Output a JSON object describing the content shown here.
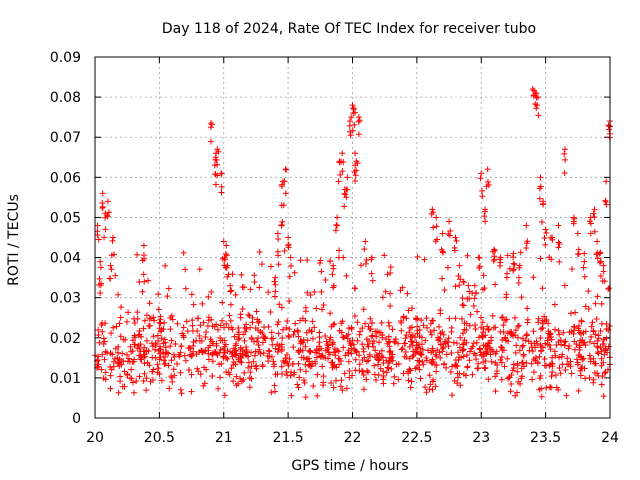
{
  "chart_data": {
    "type": "scatter",
    "title": "Day 118 of 2024, Rate Of TEC Index for receiver tubo",
    "xlabel": "GPS time / hours",
    "ylabel": "ROTI / TECUs",
    "xlim": [
      20,
      24
    ],
    "ylim": [
      0,
      0.09
    ],
    "grid": true,
    "marker": "+",
    "color": "#ff0000",
    "x_ticks": [
      20,
      20.5,
      21,
      21.5,
      22,
      22.5,
      23,
      23.5,
      24
    ],
    "x_tick_labels": [
      "20",
      "20.5",
      "21",
      "21.5",
      "22",
      "22.5",
      "23",
      "23.5",
      "24"
    ],
    "y_ticks": [
      0,
      0.01,
      0.02,
      0.03,
      0.04,
      0.05,
      0.06,
      0.07,
      0.08,
      0.09
    ],
    "y_tick_labels": [
      "0",
      "0.01",
      "0.02",
      "0.03",
      "0.04",
      "0.05",
      "0.06",
      "0.07",
      "0.08",
      "0.09"
    ],
    "baseline": {
      "description": "dense band of points",
      "x_range": [
        20,
        24
      ],
      "typical_range": [
        0.007,
        0.03
      ],
      "center": 0.017,
      "approx_point_count": 1400,
      "seed": 118
    },
    "series": [
      {
        "name": "ROTI",
        "x": [
          20.02,
          20.04,
          20.06,
          20.08,
          20.1,
          20.12,
          20.14,
          20.38,
          20.9,
          20.93,
          20.94,
          20.95,
          20.98,
          21.0,
          21.02,
          21.03,
          21.05,
          21.4,
          21.42,
          21.45,
          21.46,
          21.48,
          21.5,
          21.52,
          21.85,
          21.88,
          21.9,
          21.92,
          21.94,
          21.96,
          21.98,
          22.0,
          22.01,
          22.02,
          22.03,
          22.05,
          22.1,
          22.15,
          22.62,
          22.65,
          22.7,
          22.75,
          22.8,
          22.83,
          22.86,
          22.9,
          22.95,
          22.98,
          23.0,
          23.03,
          23.05,
          23.1,
          23.15,
          23.2,
          23.25,
          23.3,
          23.35,
          23.4,
          23.42,
          23.44,
          23.46,
          23.48,
          23.5,
          23.55,
          23.6,
          23.65,
          23.72,
          23.75,
          23.8,
          23.85,
          23.88,
          23.9,
          23.92,
          23.95,
          23.97,
          23.99,
          24.0
        ],
        "y": [
          0.048,
          0.039,
          0.056,
          0.051,
          0.054,
          0.038,
          0.045,
          0.043,
          0.0735,
          0.063,
          0.066,
          0.067,
          0.061,
          0.044,
          0.043,
          0.038,
          0.033,
          0.035,
          0.046,
          0.053,
          0.059,
          0.062,
          0.045,
          0.04,
          0.038,
          0.05,
          0.064,
          0.066,
          0.057,
          0.06,
          0.074,
          0.078,
          0.077,
          0.066,
          0.064,
          0.075,
          0.044,
          0.04,
          0.052,
          0.05,
          0.046,
          0.049,
          0.045,
          0.038,
          0.034,
          0.033,
          0.033,
          0.04,
          0.061,
          0.052,
          0.062,
          0.042,
          0.04,
          0.036,
          0.041,
          0.038,
          0.048,
          0.082,
          0.081,
          0.08,
          0.06,
          0.054,
          0.047,
          0.045,
          0.048,
          0.067,
          0.05,
          0.046,
          0.041,
          0.05,
          0.052,
          0.044,
          0.041,
          0.038,
          0.059,
          0.073,
          0.074
        ]
      }
    ]
  }
}
